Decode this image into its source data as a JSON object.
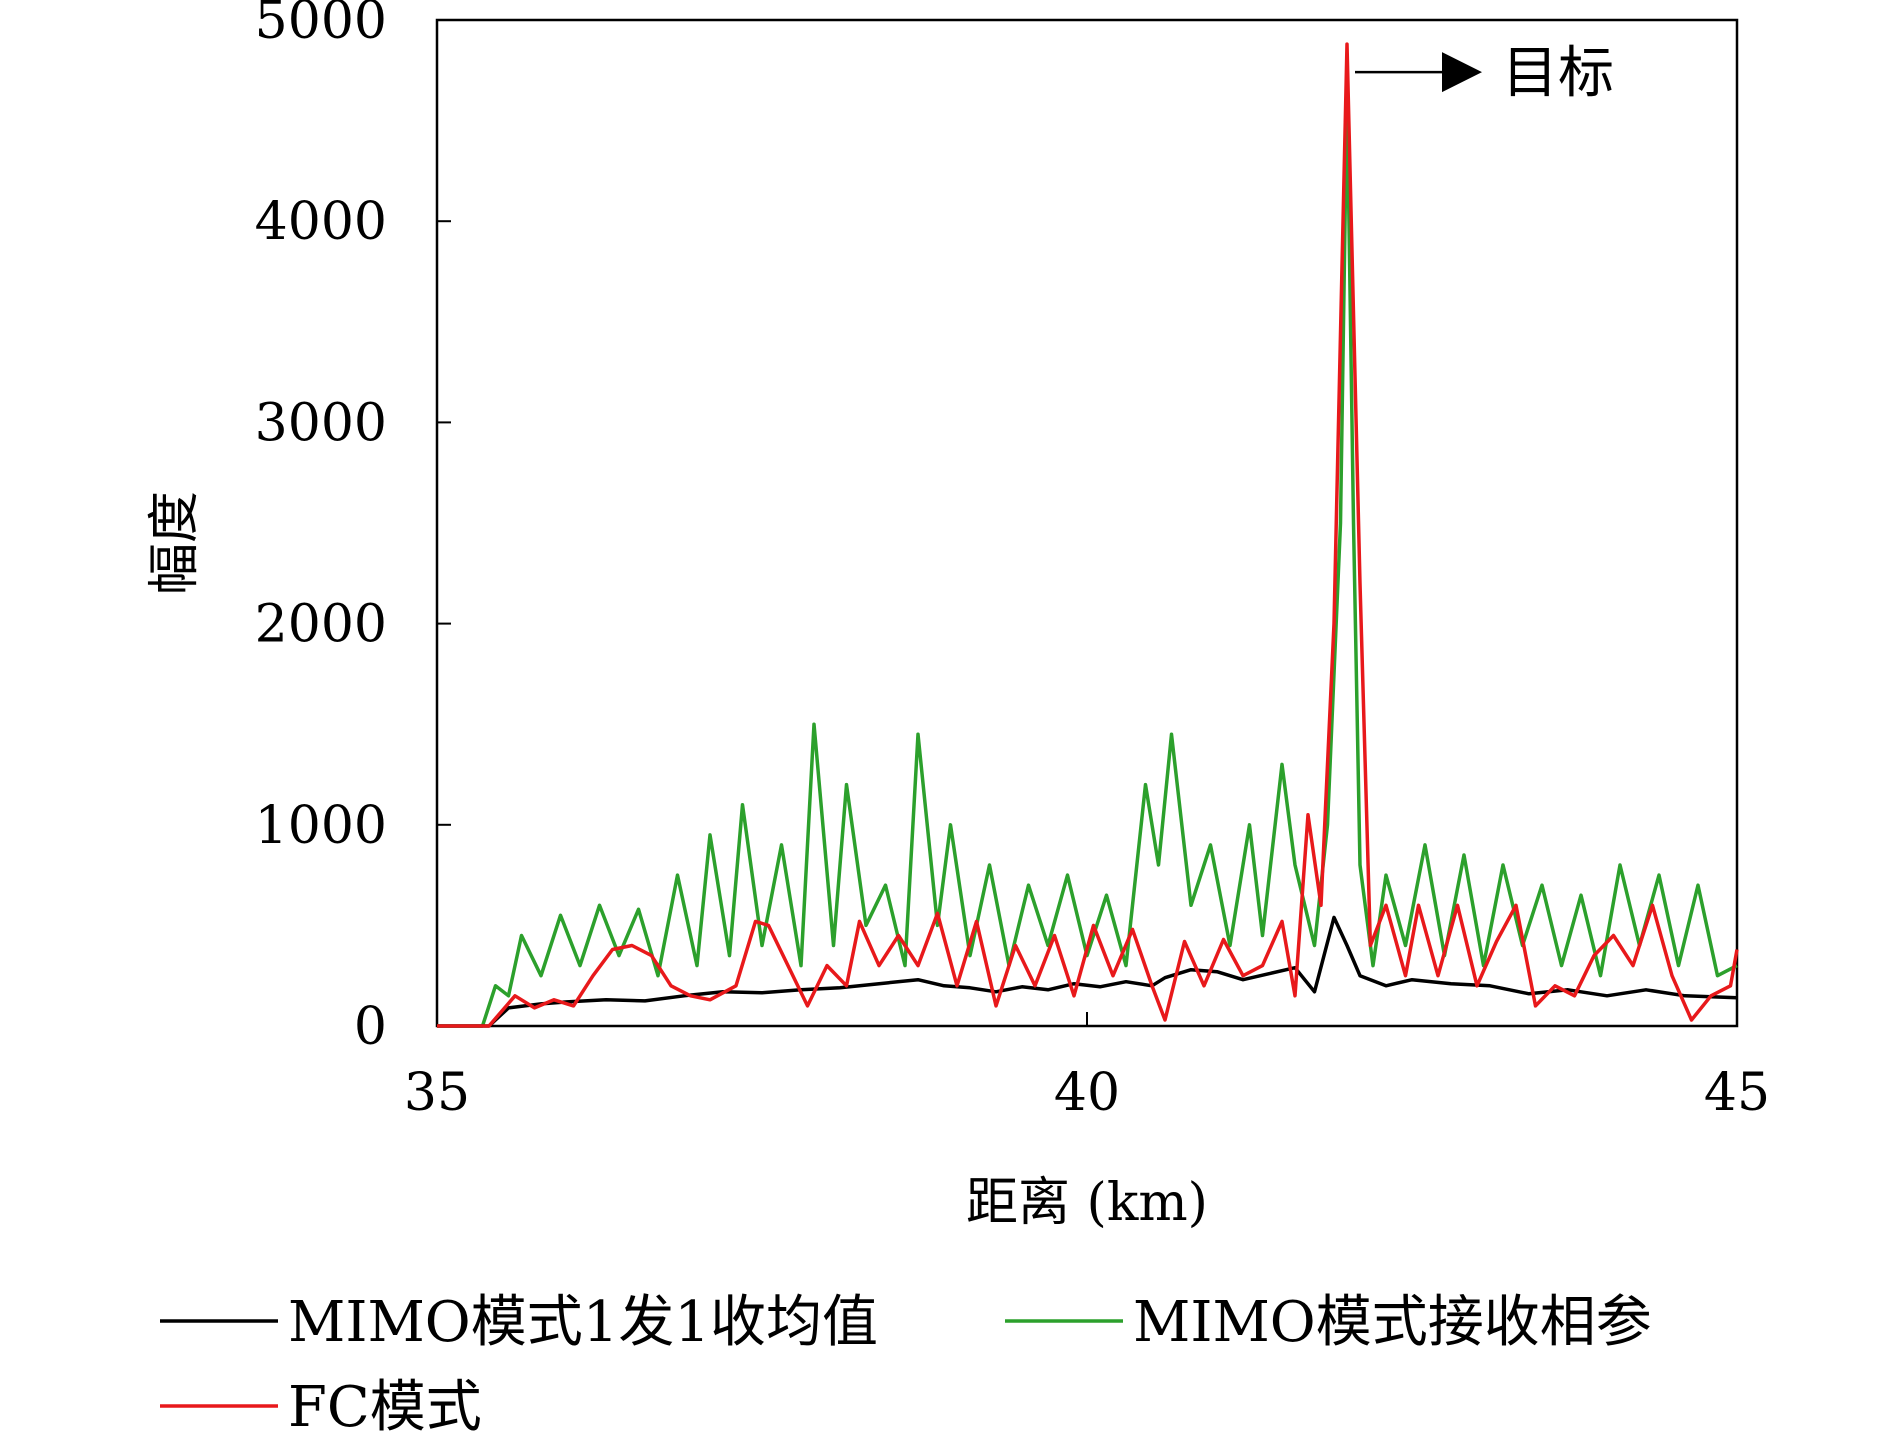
{
  "chart_data": {
    "type": "line",
    "title": "",
    "xlabel": "距离 (km)",
    "ylabel": "幅度",
    "xlim": [
      35,
      45
    ],
    "ylim": [
      0,
      5000
    ],
    "x_ticks": [
      35,
      40,
      45
    ],
    "y_ticks": [
      0,
      1000,
      2000,
      3000,
      4000,
      5000
    ],
    "grid": false,
    "legend_position": "bottom",
    "annotation": {
      "text": "目标",
      "points_to": [
        42.0,
        4880
      ]
    },
    "series": [
      {
        "name": "MIMO模式1发1收均值",
        "color": "#000000",
        "points": [
          [
            35.0,
            0
          ],
          [
            35.4,
            0
          ],
          [
            35.55,
            90
          ],
          [
            35.8,
            110
          ],
          [
            36.0,
            120
          ],
          [
            36.3,
            130
          ],
          [
            36.6,
            125
          ],
          [
            36.9,
            150
          ],
          [
            37.2,
            170
          ],
          [
            37.5,
            165
          ],
          [
            37.8,
            180
          ],
          [
            38.1,
            190
          ],
          [
            38.4,
            210
          ],
          [
            38.7,
            230
          ],
          [
            38.9,
            200
          ],
          [
            39.1,
            190
          ],
          [
            39.3,
            170
          ],
          [
            39.5,
            195
          ],
          [
            39.7,
            180
          ],
          [
            39.9,
            210
          ],
          [
            40.1,
            195
          ],
          [
            40.3,
            220
          ],
          [
            40.5,
            200
          ],
          [
            40.6,
            240
          ],
          [
            40.8,
            280
          ],
          [
            41.0,
            270
          ],
          [
            41.2,
            230
          ],
          [
            41.4,
            260
          ],
          [
            41.6,
            290
          ],
          [
            41.75,
            170
          ],
          [
            41.9,
            540
          ],
          [
            42.0,
            400
          ],
          [
            42.1,
            250
          ],
          [
            42.3,
            200
          ],
          [
            42.5,
            230
          ],
          [
            42.8,
            210
          ],
          [
            43.1,
            200
          ],
          [
            43.4,
            160
          ],
          [
            43.7,
            180
          ],
          [
            44.0,
            150
          ],
          [
            44.3,
            180
          ],
          [
            44.6,
            150
          ],
          [
            45.0,
            140
          ]
        ]
      },
      {
        "name": "MIMO模式接收相参",
        "color": "#2ca02c",
        "points": [
          [
            35.0,
            0
          ],
          [
            35.35,
            0
          ],
          [
            35.45,
            200
          ],
          [
            35.55,
            150
          ],
          [
            35.65,
            450
          ],
          [
            35.8,
            250
          ],
          [
            35.95,
            550
          ],
          [
            36.1,
            300
          ],
          [
            36.25,
            600
          ],
          [
            36.4,
            350
          ],
          [
            36.55,
            580
          ],
          [
            36.7,
            250
          ],
          [
            36.85,
            750
          ],
          [
            37.0,
            300
          ],
          [
            37.1,
            950
          ],
          [
            37.25,
            350
          ],
          [
            37.35,
            1100
          ],
          [
            37.5,
            400
          ],
          [
            37.65,
            900
          ],
          [
            37.8,
            300
          ],
          [
            37.9,
            1500
          ],
          [
            38.05,
            400
          ],
          [
            38.15,
            1200
          ],
          [
            38.3,
            500
          ],
          [
            38.45,
            700
          ],
          [
            38.6,
            300
          ],
          [
            38.7,
            1450
          ],
          [
            38.85,
            500
          ],
          [
            38.95,
            1000
          ],
          [
            39.1,
            350
          ],
          [
            39.25,
            800
          ],
          [
            39.4,
            300
          ],
          [
            39.55,
            700
          ],
          [
            39.7,
            400
          ],
          [
            39.85,
            750
          ],
          [
            40.0,
            350
          ],
          [
            40.15,
            650
          ],
          [
            40.3,
            300
          ],
          [
            40.45,
            1200
          ],
          [
            40.55,
            800
          ],
          [
            40.65,
            1450
          ],
          [
            40.8,
            600
          ],
          [
            40.95,
            900
          ],
          [
            41.1,
            400
          ],
          [
            41.25,
            1000
          ],
          [
            41.35,
            450
          ],
          [
            41.5,
            1300
          ],
          [
            41.6,
            800
          ],
          [
            41.75,
            400
          ],
          [
            41.85,
            1000
          ],
          [
            41.95,
            2500
          ],
          [
            42.0,
            4650
          ],
          [
            42.05,
            2500
          ],
          [
            42.1,
            800
          ],
          [
            42.2,
            300
          ],
          [
            42.3,
            750
          ],
          [
            42.45,
            400
          ],
          [
            42.6,
            900
          ],
          [
            42.75,
            350
          ],
          [
            42.9,
            850
          ],
          [
            43.05,
            300
          ],
          [
            43.2,
            800
          ],
          [
            43.35,
            400
          ],
          [
            43.5,
            700
          ],
          [
            43.65,
            300
          ],
          [
            43.8,
            650
          ],
          [
            43.95,
            250
          ],
          [
            44.1,
            800
          ],
          [
            44.25,
            400
          ],
          [
            44.4,
            750
          ],
          [
            44.55,
            300
          ],
          [
            44.7,
            700
          ],
          [
            44.85,
            250
          ],
          [
            45.0,
            300
          ]
        ]
      },
      {
        "name": "FC模式",
        "color": "#e8191b",
        "points": [
          [
            35.0,
            0
          ],
          [
            35.4,
            0
          ],
          [
            35.6,
            150
          ],
          [
            35.75,
            90
          ],
          [
            35.9,
            130
          ],
          [
            36.05,
            100
          ],
          [
            36.2,
            250
          ],
          [
            36.35,
            380
          ],
          [
            36.5,
            400
          ],
          [
            36.65,
            350
          ],
          [
            36.8,
            200
          ],
          [
            36.95,
            150
          ],
          [
            37.1,
            130
          ],
          [
            37.3,
            200
          ],
          [
            37.45,
            520
          ],
          [
            37.55,
            500
          ],
          [
            37.7,
            300
          ],
          [
            37.85,
            100
          ],
          [
            38.0,
            300
          ],
          [
            38.15,
            200
          ],
          [
            38.25,
            520
          ],
          [
            38.4,
            300
          ],
          [
            38.55,
            450
          ],
          [
            38.7,
            300
          ],
          [
            38.85,
            560
          ],
          [
            39.0,
            200
          ],
          [
            39.15,
            520
          ],
          [
            39.3,
            100
          ],
          [
            39.45,
            400
          ],
          [
            39.6,
            200
          ],
          [
            39.75,
            450
          ],
          [
            39.9,
            150
          ],
          [
            40.05,
            500
          ],
          [
            40.2,
            250
          ],
          [
            40.35,
            480
          ],
          [
            40.5,
            200
          ],
          [
            40.6,
            30
          ],
          [
            40.75,
            420
          ],
          [
            40.9,
            200
          ],
          [
            41.05,
            430
          ],
          [
            41.2,
            250
          ],
          [
            41.35,
            300
          ],
          [
            41.5,
            520
          ],
          [
            41.6,
            150
          ],
          [
            41.7,
            1050
          ],
          [
            41.8,
            600
          ],
          [
            41.9,
            2000
          ],
          [
            42.0,
            4880
          ],
          [
            42.1,
            2200
          ],
          [
            42.18,
            400
          ],
          [
            42.3,
            600
          ],
          [
            42.45,
            250
          ],
          [
            42.55,
            600
          ],
          [
            42.7,
            250
          ],
          [
            42.85,
            600
          ],
          [
            43.0,
            200
          ],
          [
            43.15,
            420
          ],
          [
            43.3,
            600
          ],
          [
            43.45,
            100
          ],
          [
            43.6,
            200
          ],
          [
            43.75,
            150
          ],
          [
            43.9,
            350
          ],
          [
            44.05,
            450
          ],
          [
            44.2,
            300
          ],
          [
            44.35,
            600
          ],
          [
            44.5,
            250
          ],
          [
            44.65,
            30
          ],
          [
            44.8,
            150
          ],
          [
            44.95,
            200
          ],
          [
            45.0,
            380
          ]
        ]
      }
    ]
  }
}
